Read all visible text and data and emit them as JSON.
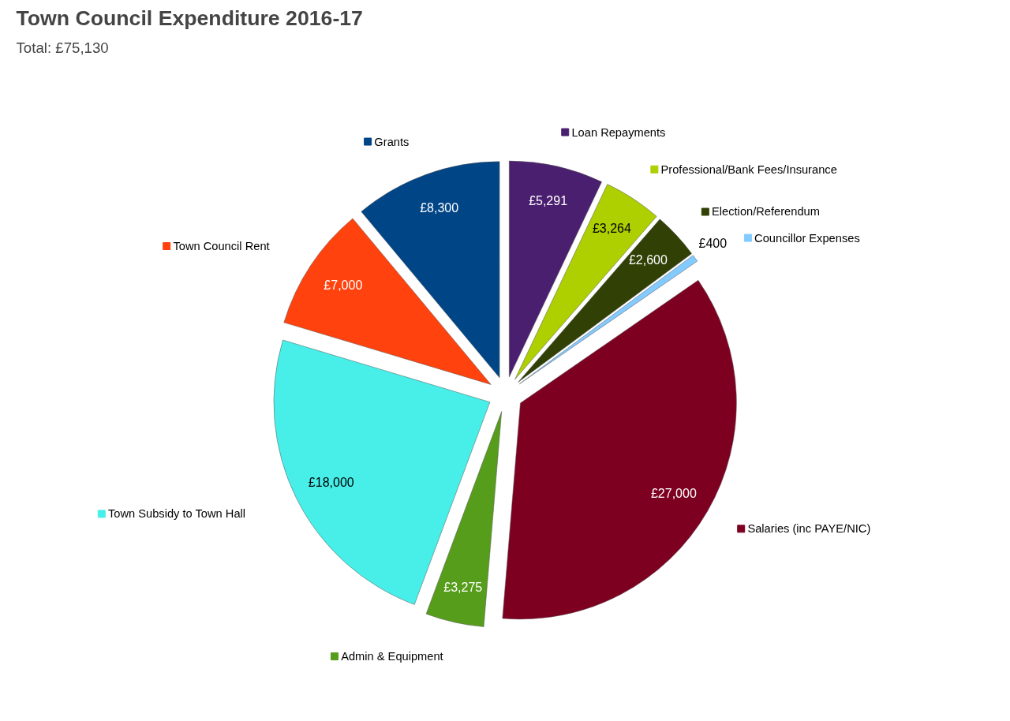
{
  "chart_data": {
    "type": "pie",
    "title": "Town Council Expenditure 2016-17",
    "subtitle": "Total: £75,130",
    "categories": [
      "Loan Repayments",
      "Professional/Bank Fees/Insurance",
      "Election/Referendum",
      "Councillor Expenses",
      "Salaries (inc PAYE/NIC)",
      "Admin & Equipment",
      "Town Subsidy to Town Hall",
      "Town Council Rent",
      "Grants"
    ],
    "values": [
      5291,
      3264,
      2600,
      400,
      27000,
      3275,
      18000,
      7000,
      8300
    ],
    "colors": [
      "#4b1f6f",
      "#aecf00",
      "#314004",
      "#83caff",
      "#7e0021",
      "#579d1c",
      "#48efe9",
      "#ff420e",
      "#004586"
    ],
    "legend": true,
    "value_labels": [
      "£5,291",
      "£3,264",
      "£2,600",
      "£400",
      "£27,000",
      "£3,275",
      "£18,000",
      "£7,000",
      "£8,300"
    ]
  }
}
